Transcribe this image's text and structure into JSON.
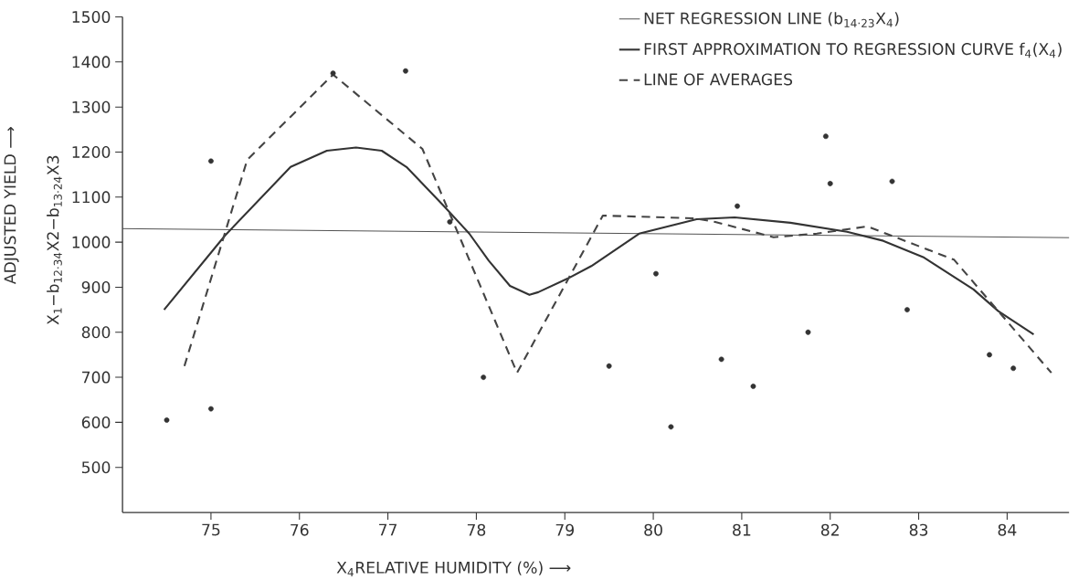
{
  "chart_data": {
    "type": "line",
    "xlabel": "X$_{4}$RELATIVE HUMIDITY (%) ⟶",
    "ylabel": "ADJUSTED YIELD ⟶",
    "annotations": [
      "X$_{1}$−b$_{12·34}$X2−b$_{13·24}$X3"
    ],
    "xlim": [
      74,
      84.7
    ],
    "ylim": [
      400,
      1500
    ],
    "xticks": [
      75,
      76,
      77,
      78,
      79,
      80,
      81,
      82,
      83,
      84
    ],
    "yticks": [
      500,
      600,
      700,
      800,
      900,
      1000,
      1100,
      1200,
      1300,
      1400,
      1500
    ],
    "legend": "top right",
    "grid": false,
    "series": [
      {
        "name": "NET REGRESSION LINE (b$_{14·23}$X$_{4}$)",
        "line_style": "solid",
        "marker": "none",
        "color": "#444444",
        "x": [
          74,
          84.7
        ],
        "values": [
          1030,
          1010
        ]
      },
      {
        "name": "FIRST APPROXIMATION TO REGRESSION CURVE f$_{4}$(X$_{4}$)",
        "line_style": "solid",
        "marker": "none",
        "color": "#333333",
        "x": [
          74.47,
          75.16,
          75.9,
          76.31,
          76.64,
          76.93,
          77.21,
          77.62,
          77.92,
          78.14,
          78.38,
          78.6,
          78.7,
          79.03,
          79.3,
          79.84,
          80.49,
          80.92,
          81.55,
          82.19,
          82.6,
          83.05,
          83.62,
          83.9,
          84.3
        ],
        "values": [
          850,
          1015,
          1167,
          1203,
          1210,
          1203,
          1167,
          1083,
          1019,
          959,
          903,
          883,
          889,
          919,
          947,
          1019,
          1051,
          1055,
          1043,
          1023,
          1003,
          967,
          895,
          847,
          795
        ]
      },
      {
        "name": "LINE OF AVERAGES",
        "line_style": "dashed",
        "marker": "none",
        "color": "#444444",
        "x": [
          74.7,
          75.41,
          76.38,
          77.39,
          78.46,
          79.43,
          80.46,
          80.7,
          81.36,
          81.85,
          82.42,
          83.4,
          84.5
        ],
        "values": [
          725,
          1183,
          1372,
          1207,
          710,
          1059,
          1053,
          1045,
          1011,
          1019,
          1035,
          961,
          710
        ]
      },
      {
        "type": "scatter",
        "marker": "circle",
        "color": "#333333",
        "x": [
          74.5,
          75.0,
          75.0,
          76.38,
          77.2,
          77.7,
          78.08,
          79.5,
          80.03,
          80.2,
          80.77,
          80.95,
          81.13,
          81.75,
          81.95,
          82.0,
          82.7,
          82.87,
          83.8,
          84.07
        ],
        "values": [
          605,
          630,
          1180,
          1375,
          1380,
          1045,
          700,
          725,
          930,
          590,
          740,
          1080,
          680,
          800,
          1235,
          1130,
          1135,
          850,
          750,
          720
        ]
      }
    ]
  }
}
